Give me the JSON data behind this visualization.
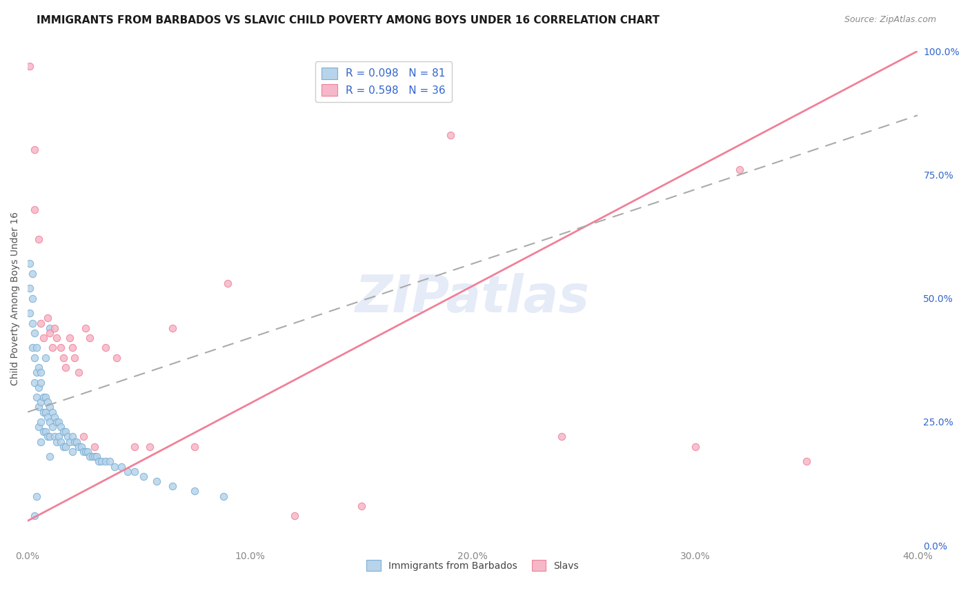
{
  "title": "IMMIGRANTS FROM BARBADOS VS SLAVIC CHILD POVERTY AMONG BOYS UNDER 16 CORRELATION CHART",
  "source": "Source: ZipAtlas.com",
  "ylabel": "Child Poverty Among Boys Under 16",
  "ylabel_right_ticks": [
    "0.0%",
    "25.0%",
    "50.0%",
    "75.0%",
    "100.0%"
  ],
  "ylabel_right_vals": [
    0.0,
    0.25,
    0.5,
    0.75,
    1.0
  ],
  "watermark_text": "ZIPatlas",
  "blue_R": 0.098,
  "blue_N": 81,
  "pink_R": 0.598,
  "pink_N": 36,
  "xlim": [
    0.0,
    0.4
  ],
  "ylim": [
    0.0,
    1.0
  ],
  "background_color": "#ffffff",
  "grid_color": "#e0e0e0",
  "blue_dot_face": "#b8d4ea",
  "blue_dot_edge": "#7aafd4",
  "pink_dot_face": "#f5b8c8",
  "pink_dot_edge": "#f08098",
  "trend_blue_color": "#aaaaaa",
  "trend_pink_color": "#f08098",
  "legend_label_color": "#3366cc",
  "title_color": "#1a1a1a",
  "source_color": "#888888",
  "ylabel_color": "#555555",
  "right_tick_color": "#3366cc",
  "bottom_tick_color": "#888888",
  "x_ticks": [
    0.0,
    0.1,
    0.2,
    0.3,
    0.4
  ],
  "x_tick_labels": [
    "0.0%",
    "10.0%",
    "20.0%",
    "30.0%",
    "40.0%"
  ],
  "pink_trend_x0": 0.0,
  "pink_trend_y0": 0.05,
  "pink_trend_x1": 0.4,
  "pink_trend_y1": 1.0,
  "blue_trend_x0": 0.0,
  "blue_trend_y0": 0.27,
  "blue_trend_x1": 0.4,
  "blue_trend_y1": 0.87,
  "blue_scatter_x": [
    0.001,
    0.001,
    0.001,
    0.002,
    0.002,
    0.002,
    0.002,
    0.003,
    0.003,
    0.003,
    0.004,
    0.004,
    0.004,
    0.005,
    0.005,
    0.005,
    0.005,
    0.006,
    0.006,
    0.006,
    0.006,
    0.007,
    0.007,
    0.007,
    0.008,
    0.008,
    0.008,
    0.009,
    0.009,
    0.009,
    0.01,
    0.01,
    0.01,
    0.01,
    0.011,
    0.011,
    0.012,
    0.012,
    0.013,
    0.013,
    0.014,
    0.014,
    0.015,
    0.015,
    0.016,
    0.016,
    0.017,
    0.017,
    0.018,
    0.019,
    0.02,
    0.02,
    0.021,
    0.022,
    0.023,
    0.024,
    0.025,
    0.026,
    0.027,
    0.028,
    0.029,
    0.03,
    0.031,
    0.032,
    0.033,
    0.035,
    0.037,
    0.039,
    0.042,
    0.045,
    0.048,
    0.052,
    0.058,
    0.065,
    0.075,
    0.088,
    0.01,
    0.008,
    0.006,
    0.004,
    0.003
  ],
  "blue_scatter_y": [
    0.57,
    0.52,
    0.47,
    0.55,
    0.5,
    0.45,
    0.4,
    0.43,
    0.38,
    0.33,
    0.4,
    0.35,
    0.3,
    0.36,
    0.32,
    0.28,
    0.24,
    0.33,
    0.29,
    0.25,
    0.21,
    0.3,
    0.27,
    0.23,
    0.3,
    0.27,
    0.23,
    0.29,
    0.26,
    0.22,
    0.28,
    0.25,
    0.22,
    0.18,
    0.27,
    0.24,
    0.26,
    0.22,
    0.25,
    0.21,
    0.25,
    0.22,
    0.24,
    0.21,
    0.23,
    0.2,
    0.23,
    0.2,
    0.22,
    0.21,
    0.22,
    0.19,
    0.21,
    0.21,
    0.2,
    0.2,
    0.19,
    0.19,
    0.19,
    0.18,
    0.18,
    0.18,
    0.18,
    0.17,
    0.17,
    0.17,
    0.17,
    0.16,
    0.16,
    0.15,
    0.15,
    0.14,
    0.13,
    0.12,
    0.11,
    0.1,
    0.44,
    0.38,
    0.35,
    0.1,
    0.06
  ],
  "pink_scatter_x": [
    0.001,
    0.003,
    0.003,
    0.005,
    0.006,
    0.007,
    0.009,
    0.01,
    0.011,
    0.012,
    0.013,
    0.015,
    0.016,
    0.017,
    0.019,
    0.02,
    0.021,
    0.023,
    0.025,
    0.026,
    0.028,
    0.03,
    0.035,
    0.04,
    0.048,
    0.055,
    0.065,
    0.075,
    0.09,
    0.12,
    0.15,
    0.19,
    0.24,
    0.3,
    0.32,
    0.35
  ],
  "pink_scatter_y": [
    0.97,
    0.8,
    0.68,
    0.62,
    0.45,
    0.42,
    0.46,
    0.43,
    0.4,
    0.44,
    0.42,
    0.4,
    0.38,
    0.36,
    0.42,
    0.4,
    0.38,
    0.35,
    0.22,
    0.44,
    0.42,
    0.2,
    0.4,
    0.38,
    0.2,
    0.2,
    0.44,
    0.2,
    0.53,
    0.06,
    0.08,
    0.83,
    0.22,
    0.2,
    0.76,
    0.17
  ]
}
